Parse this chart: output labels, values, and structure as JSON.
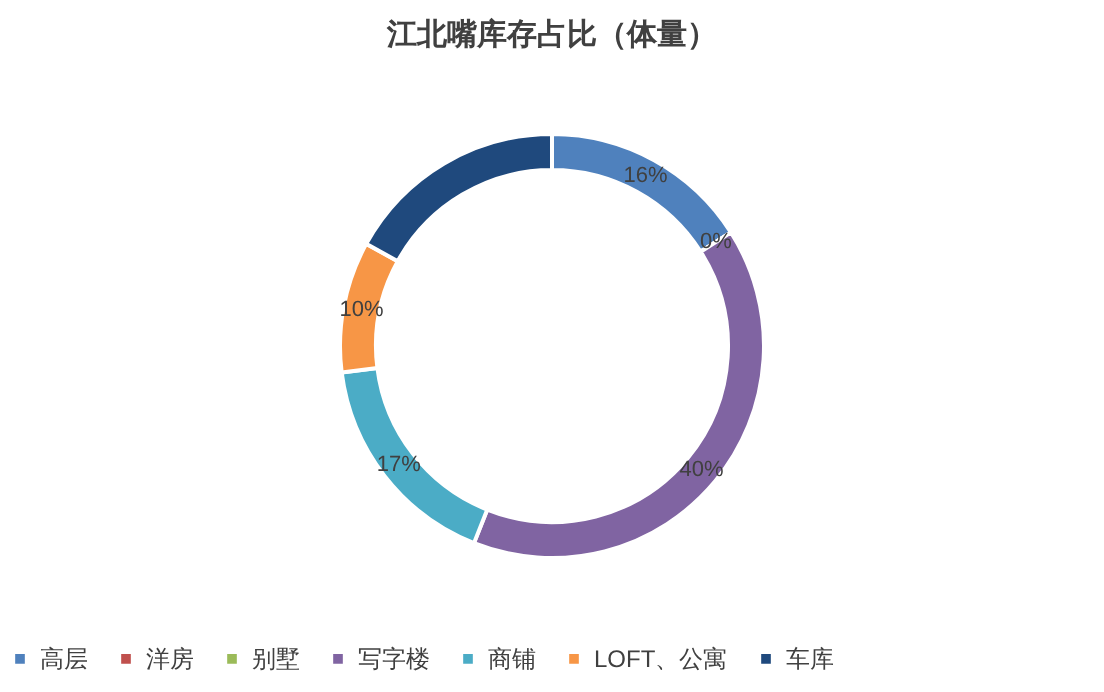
{
  "chart_data": {
    "type": "donut",
    "title": "江北嘴库存占比（体量）",
    "categories": [
      "高层",
      "洋房",
      "别墅",
      "写字楼",
      "商铺",
      "LOFT、公寓",
      "车库"
    ],
    "values": [
      16,
      0,
      0,
      40,
      17,
      10,
      17
    ],
    "colors": [
      "#4f81bd",
      "#c0504d",
      "#9bbb59",
      "#8064a2",
      "#4bacc6",
      "#f79646",
      "#1f497d"
    ],
    "value_labels": [
      "16%",
      "0%",
      null,
      "40%",
      "17%",
      "10%",
      null
    ],
    "legend": "bottom"
  }
}
